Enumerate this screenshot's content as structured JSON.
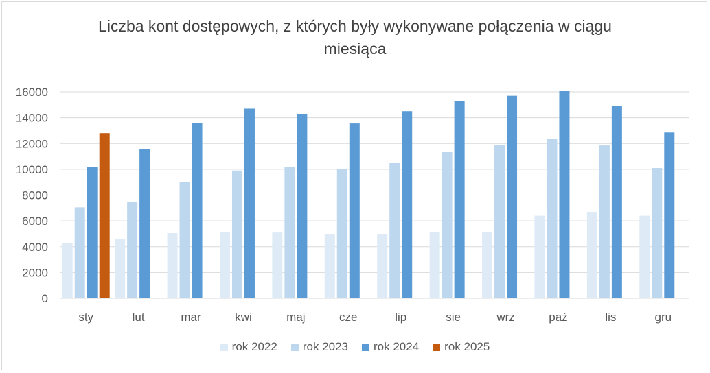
{
  "chart_data": {
    "type": "bar",
    "title_lines": [
      "Liczba kont dostępowych, z których były wykonywane połączenia w ciągu",
      "miesiąca"
    ],
    "categories": [
      "sty",
      "lut",
      "mar",
      "kwi",
      "maj",
      "cze",
      "lip",
      "sie",
      "wrz",
      "paź",
      "lis",
      "gru"
    ],
    "series": [
      {
        "name": "rok 2022",
        "color": "#deebf7",
        "values": [
          4300,
          4600,
          5050,
          5150,
          5100,
          4950,
          4950,
          5150,
          5150,
          6400,
          6700,
          6400
        ]
      },
      {
        "name": "rok 2023",
        "color": "#bdd7ee",
        "values": [
          7050,
          7450,
          9000,
          9900,
          10200,
          10000,
          10500,
          11350,
          11900,
          12350,
          11850,
          10100
        ]
      },
      {
        "name": "rok 2024",
        "color": "#5b9bd5",
        "values": [
          10200,
          11550,
          13600,
          14700,
          14300,
          13550,
          14500,
          15300,
          15700,
          16100,
          14900,
          12850
        ]
      },
      {
        "name": "rok 2025",
        "color": "#c55a11",
        "values": [
          12800,
          null,
          null,
          null,
          null,
          null,
          null,
          null,
          null,
          null,
          null,
          null
        ]
      }
    ],
    "y_ticks": [
      "0",
      "2000",
      "4000",
      "6000",
      "8000",
      "10000",
      "12000",
      "14000",
      "16000"
    ],
    "ylim": [
      0,
      16000
    ],
    "grid": true,
    "legend_position": "bottom",
    "xlabel": "",
    "ylabel": ""
  }
}
